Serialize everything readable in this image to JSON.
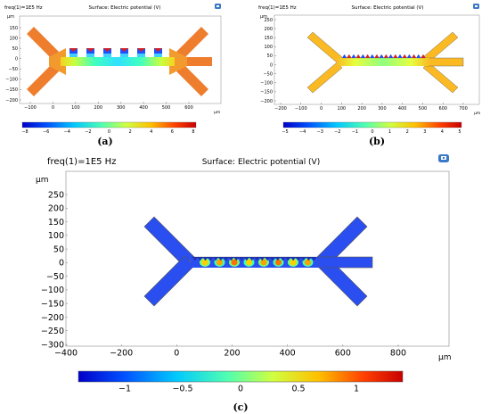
{
  "panels": [
    {
      "id": "a",
      "label": "(a)",
      "freq_text": "freq(1)=1E5 Hz",
      "title": "Surface: Electric potential (V)",
      "unit_y": "µm",
      "unit_x": "µm",
      "yticks": [
        "150",
        "100",
        "50",
        "0",
        "−50",
        "−100",
        "−150",
        "−200"
      ],
      "xticks": [
        "−100",
        "0",
        "100",
        "200",
        "300",
        "400",
        "500",
        "600"
      ],
      "colorbar_ticks": [
        "−8",
        "−6",
        "−4",
        "−2",
        "0",
        "2",
        "4",
        "6",
        "8"
      ],
      "colorbar_range": [
        -8,
        8
      ],
      "body_color": "#ee7d2e"
    },
    {
      "id": "b",
      "label": "(b)",
      "freq_text": "freq(1)=1E5 Hz",
      "title": "Surface: Electric potential (V)",
      "unit_y": "µm",
      "unit_x": "µm",
      "yticks": [
        "250",
        "200",
        "150",
        "100",
        "50",
        "0",
        "−50",
        "−100",
        "−150",
        "−200"
      ],
      "xticks": [
        "−200",
        "−100",
        "0",
        "100",
        "200",
        "300",
        "400",
        "500",
        "600",
        "700"
      ],
      "colorbar_ticks": [
        "−5",
        "−4",
        "−3",
        "−2",
        "−1",
        "0",
        "1",
        "2",
        "3",
        "4",
        "5"
      ],
      "colorbar_range": [
        -5,
        5
      ],
      "body_color": "#fbba23"
    },
    {
      "id": "c",
      "label": "(c)",
      "freq_text": "freq(1)=1E5 Hz",
      "title": "Surface: Electric potential (V)",
      "unit_y": "µm",
      "unit_x": "µm",
      "yticks": [
        "250",
        "200",
        "150",
        "100",
        "50",
        "0",
        "−50",
        "−100",
        "−150",
        "−200",
        "−250",
        "−300"
      ],
      "xticks": [
        "−400",
        "−200",
        "0",
        "200",
        "400",
        "600",
        "800"
      ],
      "colorbar_ticks": [
        "−1",
        "−0.5",
        "0",
        "0.5",
        "1"
      ],
      "colorbar_range": [
        -1.4,
        1.4
      ],
      "body_color": "#2a4ef0"
    }
  ],
  "colors": {
    "colorbar_stops": [
      "#0000c8",
      "#0050ff",
      "#00c8ff",
      "#50ffb0",
      "#d0ff40",
      "#ffc000",
      "#ff4000",
      "#c80000"
    ]
  }
}
